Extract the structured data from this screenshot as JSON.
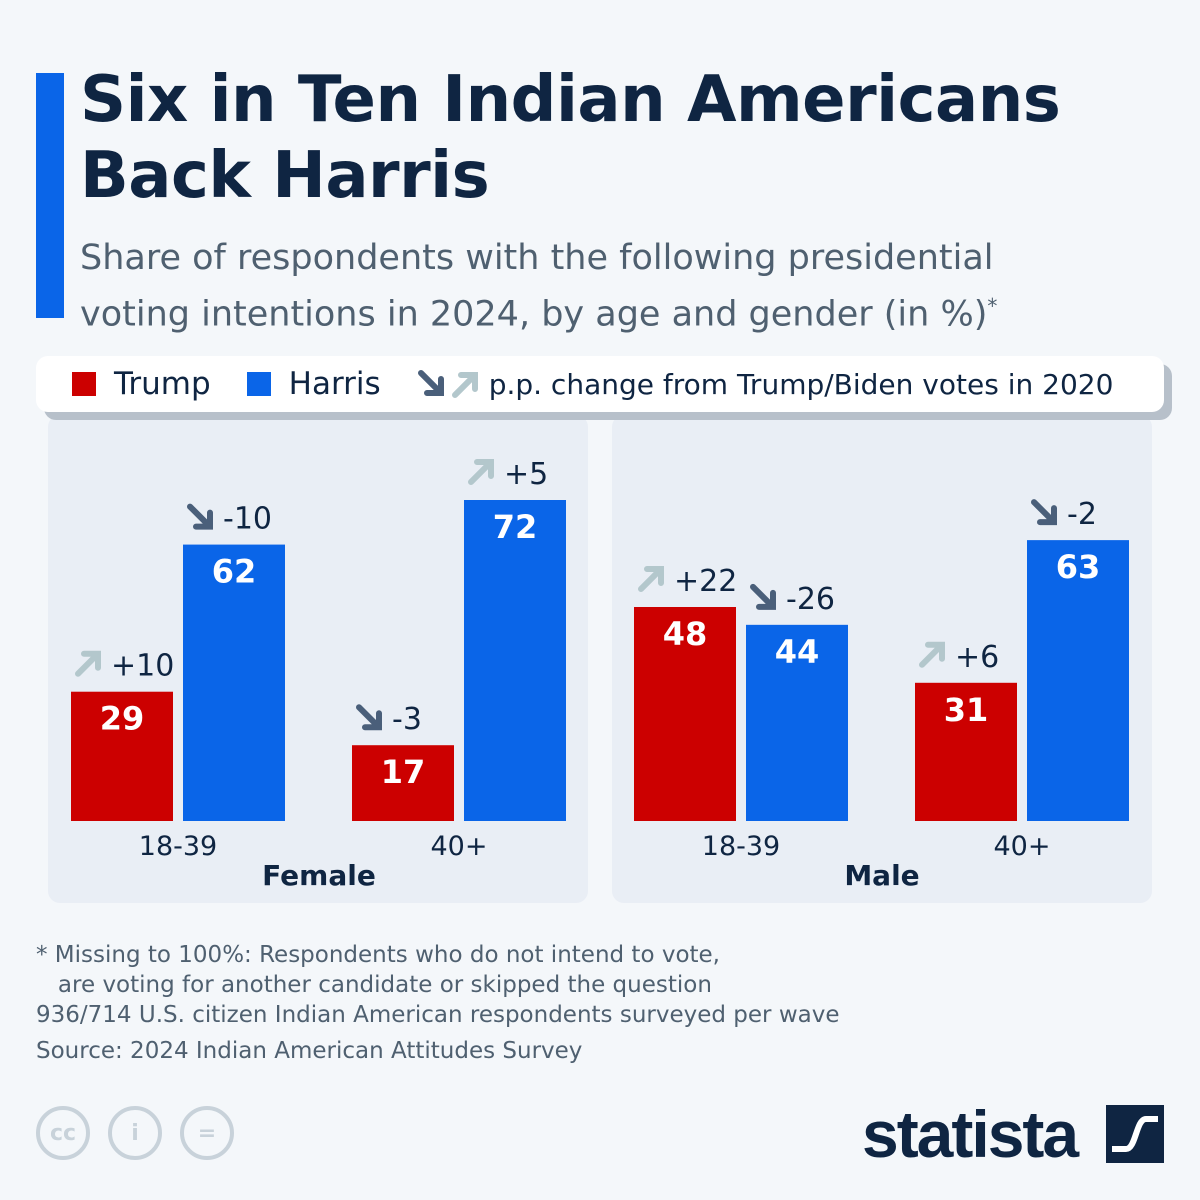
{
  "title_line1": "Six in Ten Indian Americans",
  "title_line2": "Back Harris",
  "subtitle_line1": "Share of respondents with the following presidential",
  "subtitle_line2": "voting intentions in 2024, by age and gender (in %)",
  "subtitle_mark": "*",
  "legend": {
    "trump": "Trump",
    "harris": "Harris",
    "change": "p.p. change from Trump/Biden votes in 2020"
  },
  "colors": {
    "trump": "#cc0000",
    "harris": "#0a65e8",
    "arrow_up": "#b3c7cc",
    "arrow_down": "#4a5f7a",
    "text": "#0f2542"
  },
  "chart_data": {
    "type": "bar",
    "groups": [
      {
        "name": "Female",
        "categories": [
          "18-39",
          "40+"
        ],
        "trump": [
          29,
          17
        ],
        "harris": [
          62,
          72
        ],
        "trump_change": [
          "+10",
          "-3"
        ],
        "harris_change": [
          "-10",
          "+5"
        ]
      },
      {
        "name": "Male",
        "categories": [
          "18-39",
          "40+"
        ],
        "trump": [
          48,
          31
        ],
        "harris": [
          44,
          63
        ],
        "trump_change": [
          "+22",
          "+6"
        ],
        "harris_change": [
          "-26",
          "-2"
        ]
      }
    ],
    "series": [
      {
        "name": "Trump"
      },
      {
        "name": "Harris"
      }
    ],
    "ylim": [
      0,
      72
    ]
  },
  "footnote_line1": "* Missing to 100%: Respondents who do not intend to vote,",
  "footnote_line2": "   are voting for another candidate or skipped the question",
  "footnote_line3": "936/714 U.S. citizen Indian American respondents surveyed per wave",
  "source": "Source: 2024 Indian American Attitudes Survey",
  "brand": "statista"
}
